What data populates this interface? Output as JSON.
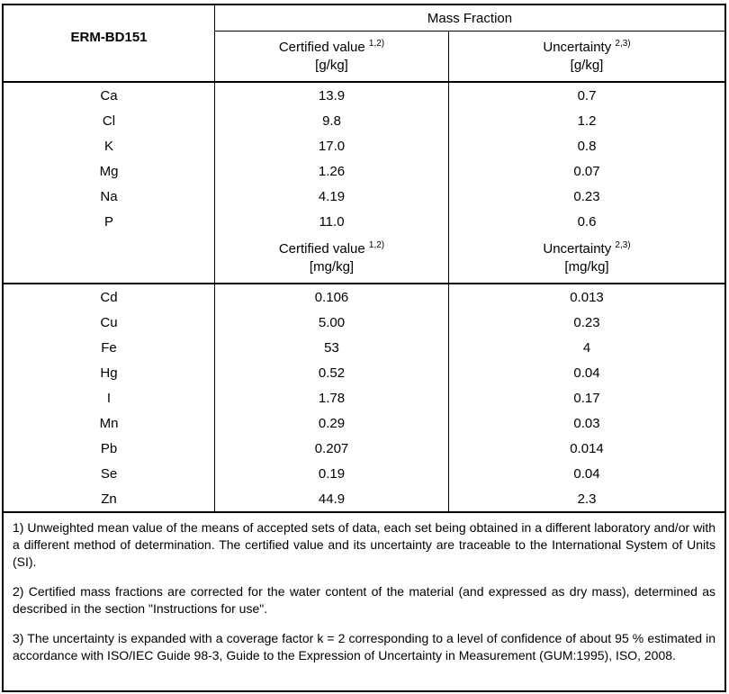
{
  "document": {
    "material_id": "ERM-BD151",
    "mass_fraction_header": "Mass Fraction"
  },
  "sections": [
    {
      "certified_label": "Certified value",
      "certified_sup": "1,2)",
      "certified_unit": "[g/kg]",
      "uncertainty_label": "Uncertainty",
      "uncertainty_sup": "2,3)",
      "uncertainty_unit": "[g/kg]",
      "rows": [
        {
          "element": "Ca",
          "certified": "13.9",
          "uncertainty": "0.7"
        },
        {
          "element": "Cl",
          "certified": "9.8",
          "uncertainty": "1.2"
        },
        {
          "element": "K",
          "certified": "17.0",
          "uncertainty": "0.8"
        },
        {
          "element": "Mg",
          "certified": "1.26",
          "uncertainty": "0.07"
        },
        {
          "element": "Na",
          "certified": "4.19",
          "uncertainty": "0.23"
        },
        {
          "element": "P",
          "certified": "11.0",
          "uncertainty": "0.6"
        }
      ]
    },
    {
      "certified_label": "Certified value",
      "certified_sup": "1,2)",
      "certified_unit": "[mg/kg]",
      "uncertainty_label": "Uncertainty",
      "uncertainty_sup": "2,3)",
      "uncertainty_unit": "[mg/kg]",
      "rows": [
        {
          "element": "Cd",
          "certified": "0.106",
          "uncertainty": "0.013"
        },
        {
          "element": "Cu",
          "certified": "5.00",
          "uncertainty": "0.23"
        },
        {
          "element": "Fe",
          "certified": "53",
          "uncertainty": "4"
        },
        {
          "element": "Hg",
          "certified": "0.52",
          "uncertainty": "0.04"
        },
        {
          "element": "I",
          "certified": "1.78",
          "uncertainty": "0.17"
        },
        {
          "element": "Mn",
          "certified": "0.29",
          "uncertainty": "0.03"
        },
        {
          "element": "Pb",
          "certified": "0.207",
          "uncertainty": "0.014"
        },
        {
          "element": "Se",
          "certified": "0.19",
          "uncertainty": "0.04"
        },
        {
          "element": "Zn",
          "certified": "44.9",
          "uncertainty": "2.3"
        }
      ]
    }
  ],
  "footnotes": [
    "1) Unweighted mean value of the means of accepted sets of data, each set being obtained in a different laboratory and/or with a different method of determination. The certified value and its uncertainty are traceable to the International System of Units (SI).",
    "2) Certified mass fractions are corrected for the water content of the material (and expressed as dry mass), determined as described in the section \"Instructions for use\".",
    "3) The uncertainty is expanded with a coverage factor k = 2 corresponding to a level of confidence of about 95 % estimated in accordance with ISO/IEC Guide 98-3, Guide to the Expression of Uncertainty in Measurement (GUM:1995), ISO, 2008."
  ]
}
